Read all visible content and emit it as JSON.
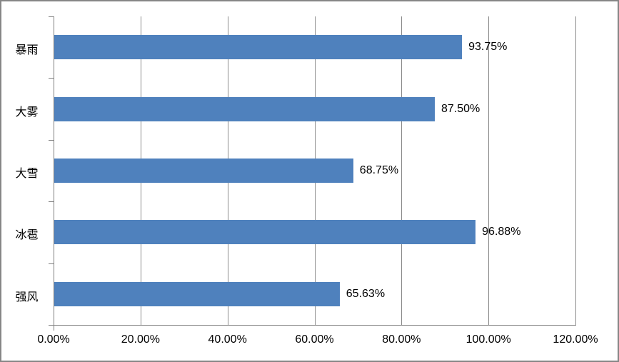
{
  "chart_data": {
    "type": "bar",
    "orientation": "horizontal",
    "title": "",
    "xlabel": "",
    "ylabel": "",
    "categories": [
      "暴雨",
      "大雾",
      "大雪",
      "冰雹",
      "强风"
    ],
    "values": [
      93.75,
      87.5,
      68.75,
      96.88,
      65.63
    ],
    "data_labels": [
      "93.75%",
      "87.50%",
      "68.75%",
      "96.88%",
      "65.63%"
    ],
    "x_tick_labels": [
      "0.00%",
      "20.00%",
      "40.00%",
      "60.00%",
      "80.00%",
      "100.00%",
      "120.00%"
    ],
    "x_tick_values": [
      0,
      20,
      40,
      60,
      80,
      100,
      120
    ],
    "xlim": [
      0,
      120
    ],
    "grid": "vertical-major",
    "legend": "none",
    "colors": {
      "bar": "#4F81BD",
      "gridline": "#8C8C8C",
      "axis": "#7F7F7F",
      "frame_border": "#868686",
      "label_text": "#000000",
      "background": "#FFFFFF"
    }
  }
}
